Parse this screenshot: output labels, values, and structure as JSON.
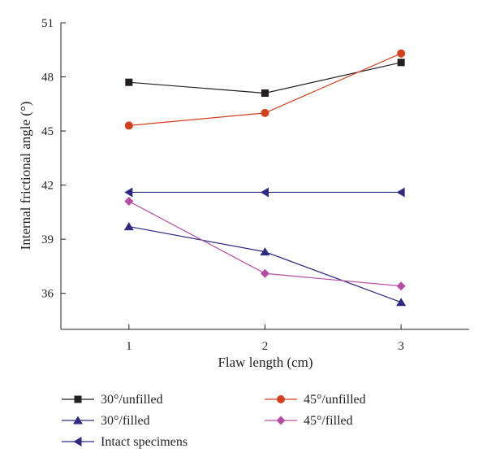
{
  "chart_data": {
    "type": "line",
    "xlabel": "Flaw length (cm)",
    "ylabel": "Internal frictional angle (°)",
    "x": [
      1,
      2,
      3
    ],
    "xlim": [
      0.5,
      3.5
    ],
    "ylim": [
      34,
      51
    ],
    "xticks": [
      "1",
      "2",
      "3"
    ],
    "yticks": [
      "36",
      "39",
      "42",
      "45",
      "48",
      "51"
    ],
    "grid": false,
    "legend_position": "bottom",
    "series": [
      {
        "name": "30°/unfilled",
        "values": [
          47.7,
          47.1,
          48.8
        ],
        "color": "#231f20",
        "marker": "square"
      },
      {
        "name": "45°/unfilled",
        "values": [
          45.3,
          46.0,
          49.3
        ],
        "color": "#d2401e",
        "marker": "circle"
      },
      {
        "name": "30°/filled",
        "values": [
          39.7,
          38.3,
          35.5
        ],
        "color": "#2e2a83",
        "marker": "triangle-up"
      },
      {
        "name": "45°/filled",
        "values": [
          41.1,
          37.1,
          36.4
        ],
        "color": "#b44da3",
        "marker": "diamond"
      },
      {
        "name": "Intact specimens",
        "values": [
          41.6,
          41.6,
          41.6
        ],
        "color": "#2e2a83",
        "marker": "triangle-left"
      }
    ]
  }
}
